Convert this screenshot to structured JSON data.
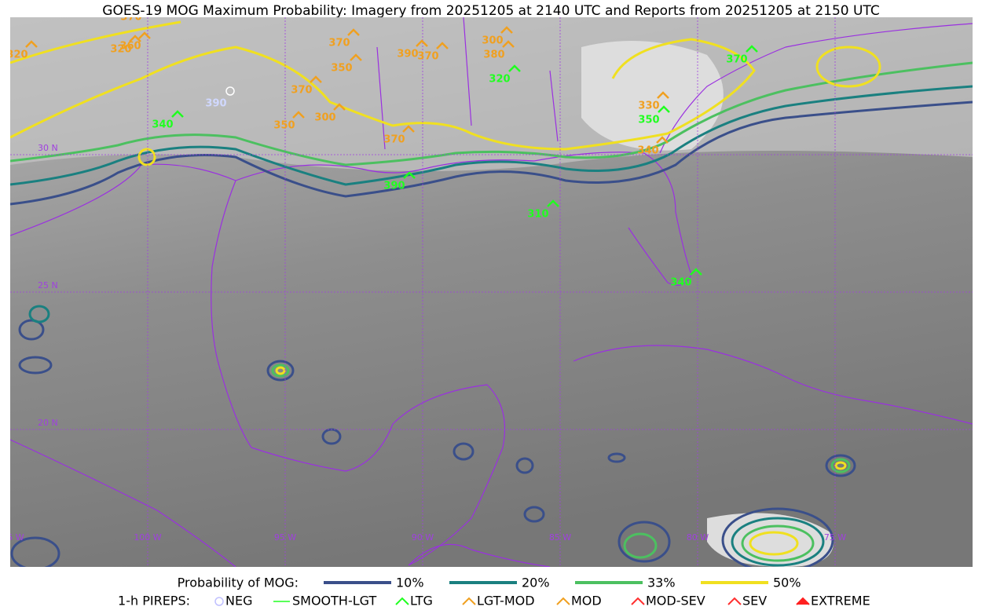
{
  "header": {
    "title": "GOES-19 MOG Maximum Probability: Imagery from 20251205 at 2140 UTC and Reports from 20251205 at 2150 UTC"
  },
  "map": {
    "lat_labels": [
      "30 N",
      "25 N",
      "20 N"
    ],
    "lon_labels": [
      "105 W",
      "100 W",
      "95 W",
      "90 W",
      "85 W",
      "80 W",
      "75 W"
    ],
    "orange_reports": [
      "370",
      "320",
      "320",
      "360",
      "370",
      "390",
      "370",
      "350",
      "300",
      "380",
      "370",
      "300",
      "350",
      "370",
      "330",
      "340"
    ],
    "white_reports": [
      "390"
    ],
    "green_reports": [
      "340",
      "320",
      "350",
      "370",
      "390",
      "310",
      "340"
    ]
  },
  "legend": {
    "probability": {
      "title": "Probability of MOG:",
      "items": [
        "10%",
        "20%",
        "33%",
        "50%"
      ]
    },
    "pireps": {
      "title": "1-h PIREPS:",
      "items": [
        "NEG",
        "SMOOTH-LGT",
        "LTG",
        "LGT-MOD",
        "MOD",
        "MOD-SEV",
        "SEV",
        "EXTREME"
      ]
    }
  }
}
